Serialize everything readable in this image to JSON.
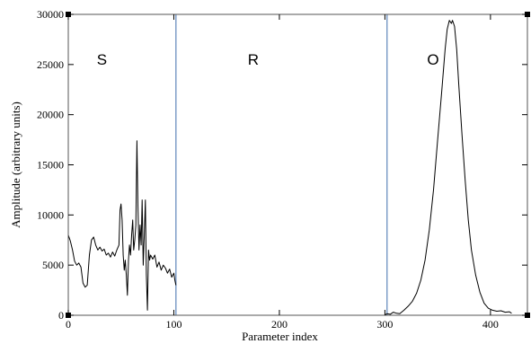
{
  "chart_data": {
    "type": "line",
    "title": "",
    "xlabel": "Parameter index",
    "ylabel": "Amplitude (arbitrary units)",
    "xlim": [
      0,
      435
    ],
    "ylim": [
      0,
      30000
    ],
    "x_ticks": [
      0,
      100,
      200,
      300,
      400
    ],
    "y_ticks": [
      0,
      5000,
      10000,
      15000,
      20000,
      25000,
      30000
    ],
    "x_tick_labels": [
      "0",
      "100",
      "200",
      "300",
      "400"
    ],
    "y_tick_labels": [
      "0",
      "5000",
      "10000",
      "15000",
      "20000",
      "25000",
      "30000"
    ],
    "grid": false,
    "region_dividers": [
      102,
      302
    ],
    "region_labels": [
      {
        "text": "S",
        "x": 27,
        "y": 25000
      },
      {
        "text": "R",
        "x": 170,
        "y": 25000
      },
      {
        "text": "O",
        "x": 340,
        "y": 25000
      }
    ],
    "colors": {
      "line": "#000000",
      "divider": "#6a8fc0",
      "frame": "#555555"
    },
    "series": [
      {
        "points": [
          [
            0,
            8000
          ],
          [
            2,
            7400
          ],
          [
            4,
            6500
          ],
          [
            6,
            5400
          ],
          [
            8,
            5000
          ],
          [
            10,
            5200
          ],
          [
            12,
            4800
          ],
          [
            14,
            3200
          ],
          [
            16,
            2800
          ],
          [
            18,
            3000
          ],
          [
            20,
            6000
          ],
          [
            22,
            7500
          ],
          [
            24,
            7800
          ],
          [
            26,
            7000
          ],
          [
            28,
            6500
          ],
          [
            30,
            6800
          ],
          [
            32,
            6400
          ],
          [
            34,
            6600
          ],
          [
            36,
            6000
          ],
          [
            38,
            6200
          ],
          [
            40,
            5800
          ],
          [
            42,
            6300
          ],
          [
            44,
            5900
          ],
          [
            46,
            6500
          ],
          [
            48,
            7000
          ],
          [
            49,
            10500
          ],
          [
            50,
            11100
          ],
          [
            51,
            9500
          ],
          [
            52,
            6000
          ],
          [
            53,
            4500
          ],
          [
            54,
            5500
          ],
          [
            55,
            4000
          ],
          [
            56,
            2000
          ],
          [
            57,
            5500
          ],
          [
            58,
            7000
          ],
          [
            59,
            6000
          ],
          [
            60,
            8000
          ],
          [
            61,
            9500
          ],
          [
            62,
            6500
          ],
          [
            63,
            7500
          ],
          [
            64,
            9000
          ],
          [
            65,
            17400
          ],
          [
            66,
            11000
          ],
          [
            67,
            6500
          ],
          [
            68,
            9000
          ],
          [
            69,
            7000
          ],
          [
            70,
            11500
          ],
          [
            71,
            5000
          ],
          [
            72,
            8000
          ],
          [
            73,
            11500
          ],
          [
            74,
            4000
          ],
          [
            75,
            500
          ],
          [
            76,
            6500
          ],
          [
            77,
            5500
          ],
          [
            78,
            6000
          ],
          [
            80,
            5600
          ],
          [
            82,
            6000
          ],
          [
            84,
            4800
          ],
          [
            86,
            5300
          ],
          [
            88,
            4500
          ],
          [
            90,
            5000
          ],
          [
            92,
            4700
          ],
          [
            94,
            4200
          ],
          [
            96,
            4600
          ],
          [
            98,
            3800
          ],
          [
            100,
            4200
          ],
          [
            101,
            3500
          ],
          [
            102,
            3000
          ],
          [
            300,
            50
          ],
          [
            302,
            150
          ],
          [
            305,
            100
          ],
          [
            308,
            300
          ],
          [
            311,
            200
          ],
          [
            314,
            150
          ],
          [
            318,
            500
          ],
          [
            322,
            900
          ],
          [
            326,
            1400
          ],
          [
            330,
            2200
          ],
          [
            334,
            3500
          ],
          [
            338,
            5500
          ],
          [
            342,
            8500
          ],
          [
            346,
            12500
          ],
          [
            350,
            17500
          ],
          [
            354,
            22500
          ],
          [
            357,
            26500
          ],
          [
            359,
            28500
          ],
          [
            361,
            29400
          ],
          [
            363,
            29100
          ],
          [
            364,
            29400
          ],
          [
            366,
            28800
          ],
          [
            368,
            26500
          ],
          [
            370,
            23000
          ],
          [
            373,
            18000
          ],
          [
            376,
            13500
          ],
          [
            379,
            9500
          ],
          [
            382,
            6500
          ],
          [
            386,
            4000
          ],
          [
            390,
            2300
          ],
          [
            394,
            1200
          ],
          [
            398,
            700
          ],
          [
            402,
            500
          ],
          [
            406,
            400
          ],
          [
            410,
            450
          ],
          [
            414,
            300
          ],
          [
            418,
            350
          ],
          [
            420,
            200
          ]
        ]
      }
    ]
  }
}
